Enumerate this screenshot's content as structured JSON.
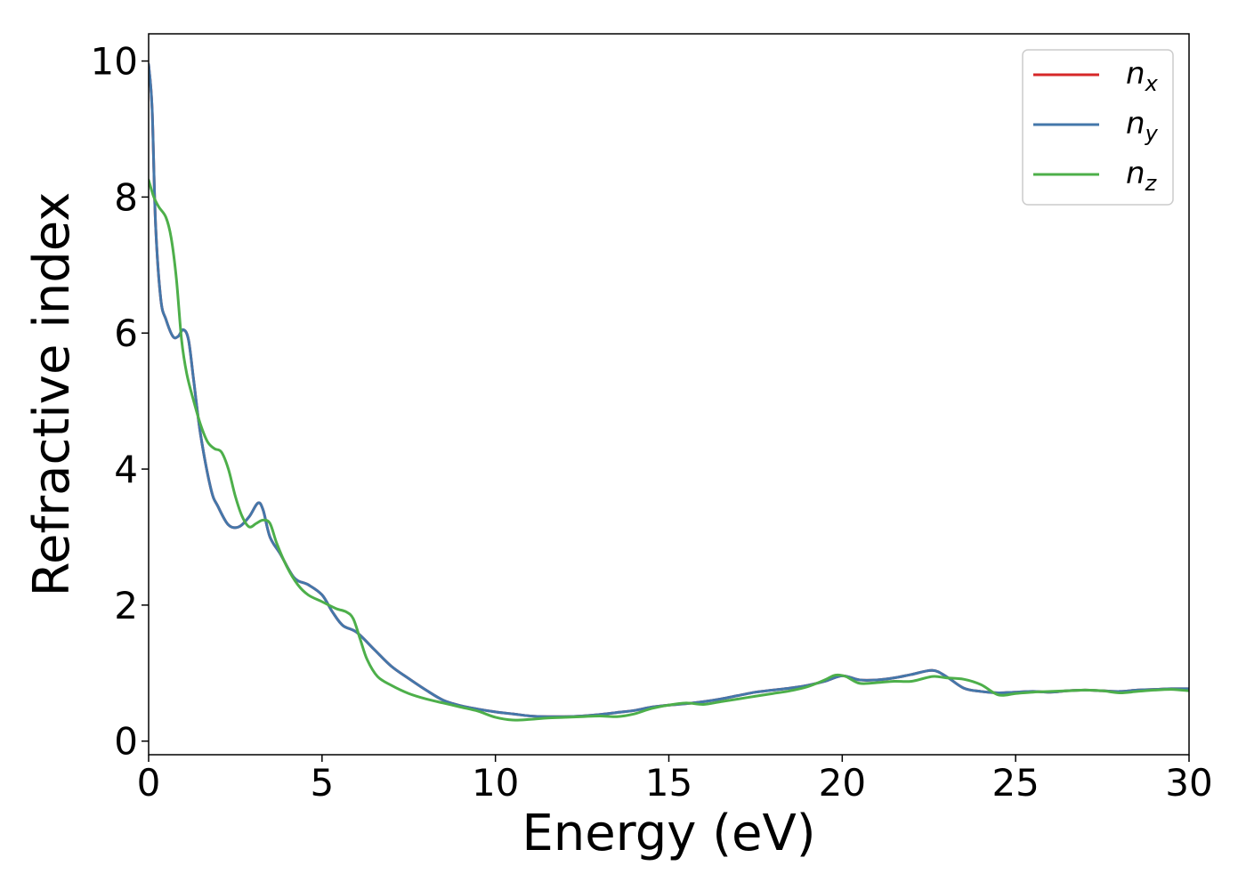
{
  "chart_data": {
    "type": "line",
    "xlabel": "Energy (eV)",
    "ylabel": "Refractive index",
    "xlim": [
      0,
      30
    ],
    "ylim": [
      -0.2,
      10.4
    ],
    "xticks": [
      0,
      5,
      10,
      15,
      20,
      25,
      30
    ],
    "yticks": [
      0,
      2,
      4,
      6,
      8,
      10
    ],
    "grid": false,
    "legend_position": "top-right",
    "series": [
      {
        "name": "n_x",
        "label_base": "n",
        "label_sub": "x",
        "color": "#d62728",
        "x": [
          0,
          0.1,
          0.2,
          0.35,
          0.5,
          0.7,
          0.85,
          1.0,
          1.15,
          1.3,
          1.5,
          1.8,
          2.0,
          2.3,
          2.6,
          2.9,
          3.15,
          3.3,
          3.5,
          3.8,
          4.2,
          4.6,
          5.0,
          5.3,
          5.6,
          6.0,
          6.5,
          7.0,
          7.5,
          8.0,
          8.5,
          9.0,
          9.5,
          10.0,
          10.5,
          11.0,
          11.5,
          12.0,
          12.5,
          13.0,
          13.5,
          14.0,
          14.5,
          15.0,
          15.5,
          16.0,
          16.5,
          17.0,
          17.5,
          18.0,
          18.5,
          19.0,
          19.5,
          20.0,
          20.5,
          21.0,
          21.5,
          22.0,
          22.6,
          23.0,
          23.5,
          24.0,
          24.5,
          25.0,
          25.5,
          26.0,
          26.5,
          27.0,
          27.5,
          28.0,
          28.5,
          29.0,
          29.5,
          30.0
        ],
        "y": [
          9.95,
          9.3,
          7.6,
          6.5,
          6.2,
          5.95,
          5.95,
          6.05,
          5.9,
          5.3,
          4.5,
          3.7,
          3.45,
          3.18,
          3.15,
          3.3,
          3.5,
          3.4,
          3.0,
          2.75,
          2.4,
          2.3,
          2.15,
          1.9,
          1.7,
          1.6,
          1.35,
          1.1,
          0.92,
          0.75,
          0.6,
          0.52,
          0.47,
          0.43,
          0.4,
          0.37,
          0.36,
          0.36,
          0.37,
          0.39,
          0.42,
          0.45,
          0.5,
          0.53,
          0.55,
          0.58,
          0.62,
          0.67,
          0.72,
          0.75,
          0.78,
          0.82,
          0.88,
          0.96,
          0.9,
          0.9,
          0.93,
          0.98,
          1.04,
          0.95,
          0.78,
          0.73,
          0.71,
          0.72,
          0.73,
          0.72,
          0.74,
          0.75,
          0.74,
          0.73,
          0.75,
          0.76,
          0.77,
          0.77
        ]
      },
      {
        "name": "n_y",
        "label_base": "n",
        "label_sub": "y",
        "color": "#4477aa",
        "x": [
          0,
          0.1,
          0.2,
          0.35,
          0.5,
          0.7,
          0.85,
          1.0,
          1.15,
          1.3,
          1.5,
          1.8,
          2.0,
          2.3,
          2.6,
          2.9,
          3.15,
          3.3,
          3.5,
          3.8,
          4.2,
          4.6,
          5.0,
          5.3,
          5.6,
          6.0,
          6.5,
          7.0,
          7.5,
          8.0,
          8.5,
          9.0,
          9.5,
          10.0,
          10.5,
          11.0,
          11.5,
          12.0,
          12.5,
          13.0,
          13.5,
          14.0,
          14.5,
          15.0,
          15.5,
          16.0,
          16.5,
          17.0,
          17.5,
          18.0,
          18.5,
          19.0,
          19.5,
          20.0,
          20.5,
          21.0,
          21.5,
          22.0,
          22.6,
          23.0,
          23.5,
          24.0,
          24.5,
          25.0,
          25.5,
          26.0,
          26.5,
          27.0,
          27.5,
          28.0,
          28.5,
          29.0,
          29.5,
          30.0
        ],
        "y": [
          9.95,
          9.3,
          7.6,
          6.5,
          6.2,
          5.95,
          5.95,
          6.05,
          5.9,
          5.3,
          4.5,
          3.7,
          3.45,
          3.18,
          3.15,
          3.3,
          3.5,
          3.4,
          3.0,
          2.75,
          2.4,
          2.3,
          2.15,
          1.9,
          1.7,
          1.6,
          1.35,
          1.1,
          0.92,
          0.75,
          0.6,
          0.52,
          0.47,
          0.43,
          0.4,
          0.37,
          0.36,
          0.36,
          0.37,
          0.39,
          0.42,
          0.45,
          0.5,
          0.53,
          0.55,
          0.58,
          0.62,
          0.67,
          0.72,
          0.75,
          0.78,
          0.82,
          0.88,
          0.96,
          0.9,
          0.9,
          0.93,
          0.98,
          1.04,
          0.95,
          0.78,
          0.73,
          0.71,
          0.72,
          0.73,
          0.72,
          0.74,
          0.75,
          0.74,
          0.73,
          0.75,
          0.76,
          0.77,
          0.77
        ]
      },
      {
        "name": "n_z",
        "label_base": "n",
        "label_sub": "z",
        "color": "#4daf4a",
        "x": [
          0,
          0.15,
          0.3,
          0.5,
          0.65,
          0.8,
          0.95,
          1.1,
          1.3,
          1.5,
          1.7,
          1.9,
          2.1,
          2.3,
          2.5,
          2.7,
          2.9,
          3.1,
          3.3,
          3.5,
          3.7,
          4.0,
          4.3,
          4.6,
          5.0,
          5.4,
          5.7,
          5.9,
          6.1,
          6.3,
          6.6,
          7.0,
          7.5,
          8.0,
          8.5,
          9.0,
          9.5,
          10.0,
          10.5,
          11.0,
          11.5,
          12.0,
          12.5,
          13.0,
          13.5,
          14.0,
          14.5,
          15.0,
          15.5,
          16.0,
          16.5,
          17.0,
          17.5,
          18.0,
          18.5,
          19.0,
          19.5,
          19.8,
          20.1,
          20.5,
          21.0,
          21.5,
          22.0,
          22.6,
          23.0,
          23.5,
          24.0,
          24.5,
          25.0,
          25.5,
          26.0,
          26.5,
          27.0,
          27.5,
          28.0,
          28.5,
          29.0,
          29.5,
          30.0
        ],
        "y": [
          8.25,
          8.0,
          7.85,
          7.7,
          7.4,
          6.8,
          5.9,
          5.4,
          5.0,
          4.65,
          4.4,
          4.3,
          4.25,
          4.0,
          3.6,
          3.3,
          3.15,
          3.2,
          3.25,
          3.2,
          2.9,
          2.55,
          2.3,
          2.15,
          2.05,
          1.95,
          1.9,
          1.8,
          1.5,
          1.2,
          0.95,
          0.82,
          0.7,
          0.62,
          0.56,
          0.5,
          0.44,
          0.35,
          0.31,
          0.32,
          0.34,
          0.35,
          0.36,
          0.37,
          0.36,
          0.4,
          0.48,
          0.53,
          0.56,
          0.54,
          0.58,
          0.62,
          0.66,
          0.7,
          0.74,
          0.8,
          0.9,
          0.97,
          0.95,
          0.85,
          0.86,
          0.88,
          0.88,
          0.95,
          0.93,
          0.91,
          0.83,
          0.68,
          0.7,
          0.72,
          0.73,
          0.74,
          0.75,
          0.74,
          0.71,
          0.73,
          0.75,
          0.76,
          0.74
        ]
      }
    ]
  }
}
